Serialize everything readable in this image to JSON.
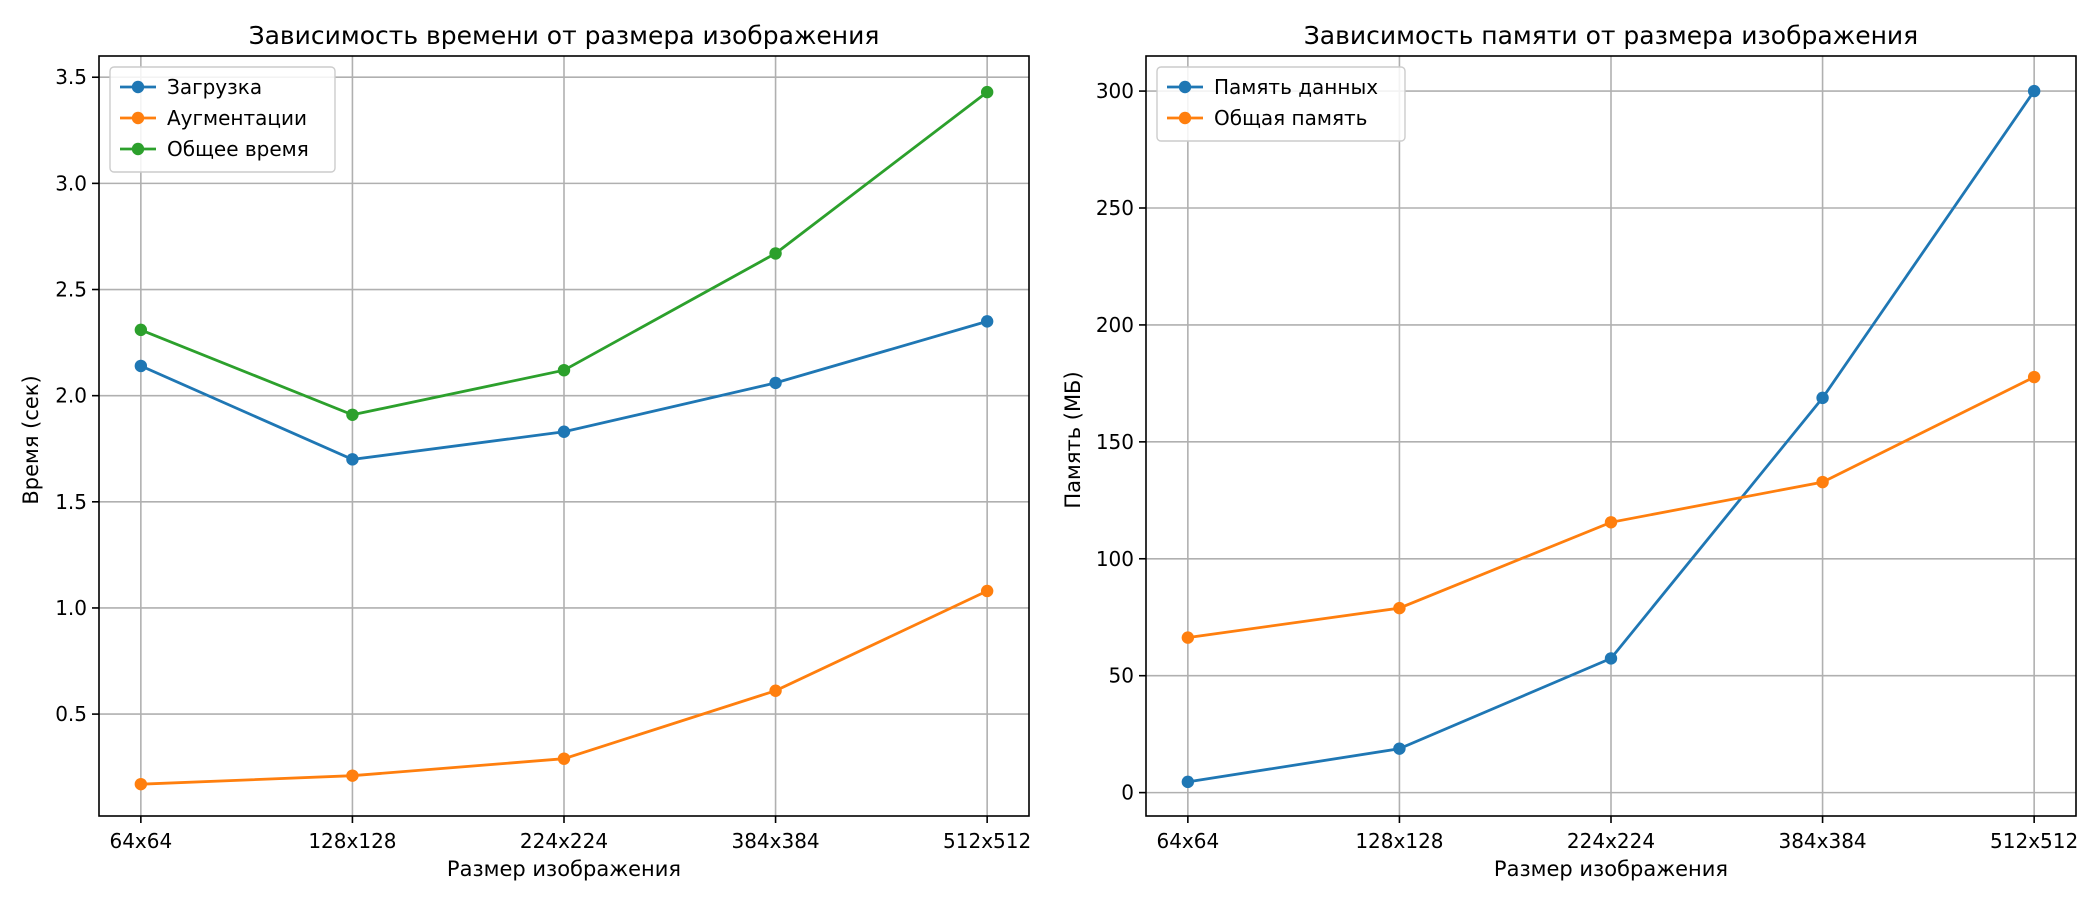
{
  "chart_data": [
    {
      "type": "line",
      "title": "Зависимость времени от размера изображения",
      "xlabel": "Размер изображения",
      "ylabel": "Время (сек)",
      "categories": [
        "64x64",
        "128x128",
        "224x224",
        "384x384",
        "512x512"
      ],
      "ylim": [
        0.02,
        3.6
      ],
      "yticks": [
        0.5,
        1.0,
        1.5,
        2.0,
        2.5,
        3.0,
        3.5
      ],
      "ytick_labels": [
        "0.5",
        "1.0",
        "1.5",
        "2.0",
        "2.5",
        "3.0",
        "3.5"
      ],
      "grid": true,
      "legend_position": "top-left",
      "series": [
        {
          "name": "Загрузка",
          "color": "#1f77b4",
          "values": [
            2.14,
            1.7,
            1.83,
            2.06,
            2.35
          ]
        },
        {
          "name": "Аугментации",
          "color": "#ff7f0e",
          "values": [
            0.17,
            0.21,
            0.29,
            0.61,
            1.08
          ]
        },
        {
          "name": "Общее время",
          "color": "#2ca02c",
          "values": [
            2.31,
            1.91,
            2.12,
            2.67,
            3.43
          ]
        }
      ]
    },
    {
      "type": "line",
      "title": "Зависимость памяти от размера изображения",
      "xlabel": "Размер изображения",
      "ylabel": "Память (МБ)",
      "categories": [
        "64x64",
        "128x128",
        "224x224",
        "384x384",
        "512x512"
      ],
      "ylim": [
        -10,
        315
      ],
      "yticks": [
        0,
        50,
        100,
        150,
        200,
        250,
        300
      ],
      "ytick_labels": [
        "0",
        "50",
        "100",
        "150",
        "200",
        "250",
        "300"
      ],
      "grid": true,
      "legend_position": "top-left",
      "series": [
        {
          "name": "Память данных",
          "color": "#1f77b4",
          "values": [
            4.6,
            18.8,
            57.4,
            168.8,
            300.0
          ]
        },
        {
          "name": "Общая память",
          "color": "#ff7f0e",
          "values": [
            66.3,
            78.9,
            115.6,
            132.8,
            177.7
          ]
        }
      ]
    }
  ]
}
